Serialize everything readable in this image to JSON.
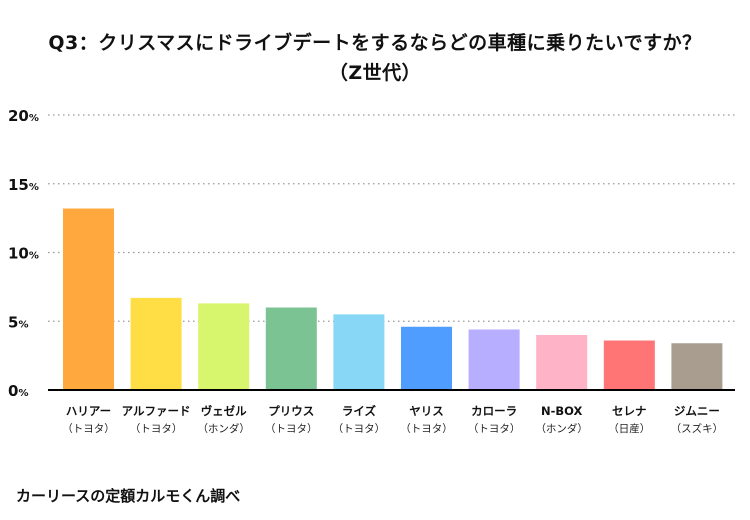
{
  "title_line1": "Q3：クリスマスにドライブデートをするならどの車種に乗りたいですか？",
  "title_line2": "（Z世代）",
  "source": "カーリースの定額カルモくん調べ",
  "chart_data": {
    "type": "bar",
    "y_unit": "%",
    "ylim": [
      0,
      20
    ],
    "yticks": [
      0,
      5,
      10,
      15,
      20
    ],
    "grid": true,
    "categories": [
      {
        "name": "ハリアー",
        "maker": "（トヨタ）",
        "value": 13.2,
        "color": "#FFA83E"
      },
      {
        "name": "アルファード",
        "maker": "（トヨタ）",
        "value": 6.7,
        "color": "#FFDD45"
      },
      {
        "name": "ヴェゼル",
        "maker": "（ホンダ）",
        "value": 6.3,
        "color": "#D8F56E"
      },
      {
        "name": "プリウス",
        "maker": "（トヨタ）",
        "value": 6.0,
        "color": "#7CC394"
      },
      {
        "name": "ライズ",
        "maker": "（トヨタ）",
        "value": 5.5,
        "color": "#88D7F6"
      },
      {
        "name": "ヤリス",
        "maker": "（トヨタ）",
        "value": 4.6,
        "color": "#4F9EFF"
      },
      {
        "name": "カローラ",
        "maker": "（トヨタ）",
        "value": 4.4,
        "color": "#B7AEFF"
      },
      {
        "name": "N-BOX",
        "maker": "（ホンダ）",
        "value": 4.0,
        "color": "#FFB3C7"
      },
      {
        "name": "セレナ",
        "maker": "（日産）",
        "value": 3.6,
        "color": "#FF7575"
      },
      {
        "name": "ジムニー",
        "maker": "（スズキ）",
        "value": 3.4,
        "color": "#A89D8E"
      }
    ]
  }
}
